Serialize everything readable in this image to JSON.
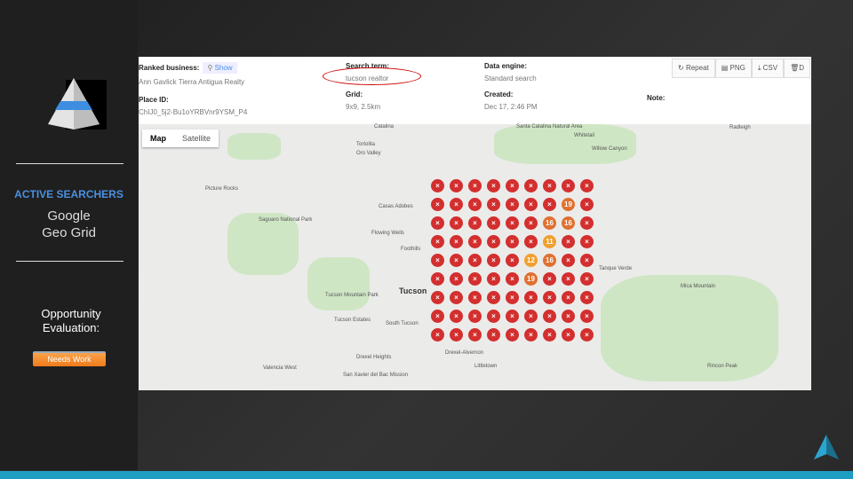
{
  "sidebar": {
    "section_title": "ACTIVE SEARCHERS",
    "line1": "Google",
    "line2": "Geo Grid",
    "opportunity_label1": "Opportunity",
    "opportunity_label2": "Evaluation:",
    "status_badge": "Needs Work"
  },
  "header": {
    "ranked_business_label": "Ranked business:",
    "show_label": "Show",
    "ranked_business": "Ann Gavlick Tierra Antigua Realty",
    "place_id_label": "Place ID:",
    "place_id": "ChIJ0_5j2-Bu1oYRBVnr9YSM_P4",
    "search_term_label": "Search term:",
    "search_term": "tucson realtor",
    "grid_label": "Grid:",
    "grid": "9x9, 2.5km",
    "data_engine_label": "Data engine:",
    "data_engine": "Standard search",
    "created_label": "Created:",
    "created": "Dec 17, 2:46 PM",
    "note_label": "Note:",
    "buttons": {
      "repeat": "Repeat",
      "png": "PNG",
      "csv": "CSV",
      "delete": "D"
    }
  },
  "map": {
    "tabs": [
      "Map",
      "Satellite"
    ],
    "labels": [
      "Tortolita",
      "Oro Valley",
      "Catalina",
      "Santa Catalina Natural Area",
      "Whitetail",
      "Willow Canyon",
      "Radleigh",
      "Picture Rocks",
      "Casas Adobes",
      "Saguaro National Park",
      "Flowing Wells",
      "Foothills",
      "Tanque Verde",
      "Mica Mountain",
      "Tucson",
      "Tucson Mountain Park",
      "Tucson Estates",
      "South Tucson",
      "Drexel Heights",
      "Valencia West",
      "San Xavier del Bac Mission",
      "Drexel-Alvernon",
      "Littletown",
      "Rincon Peak"
    ],
    "grid_ranks": [
      [
        null,
        null,
        null,
        null,
        null,
        null,
        null,
        null,
        null
      ],
      [
        null,
        null,
        null,
        null,
        null,
        null,
        null,
        19,
        null
      ],
      [
        null,
        null,
        null,
        null,
        null,
        null,
        16,
        16,
        null
      ],
      [
        null,
        null,
        null,
        null,
        null,
        null,
        11,
        null,
        null
      ],
      [
        null,
        null,
        null,
        null,
        null,
        12,
        16,
        null,
        null
      ],
      [
        null,
        null,
        null,
        null,
        null,
        19,
        null,
        null,
        null
      ],
      [
        null,
        null,
        null,
        null,
        null,
        null,
        null,
        null,
        null
      ],
      [
        null,
        null,
        null,
        null,
        null,
        null,
        null,
        null,
        null
      ],
      [
        null,
        null,
        null,
        null,
        null,
        null,
        null,
        null,
        null
      ]
    ],
    "not_ranked_mark": "×",
    "colors": {
      "not_ranked": "#d32f2f",
      "rank_11_15": "#f0a030",
      "rank_16_20": "#e07030"
    }
  }
}
